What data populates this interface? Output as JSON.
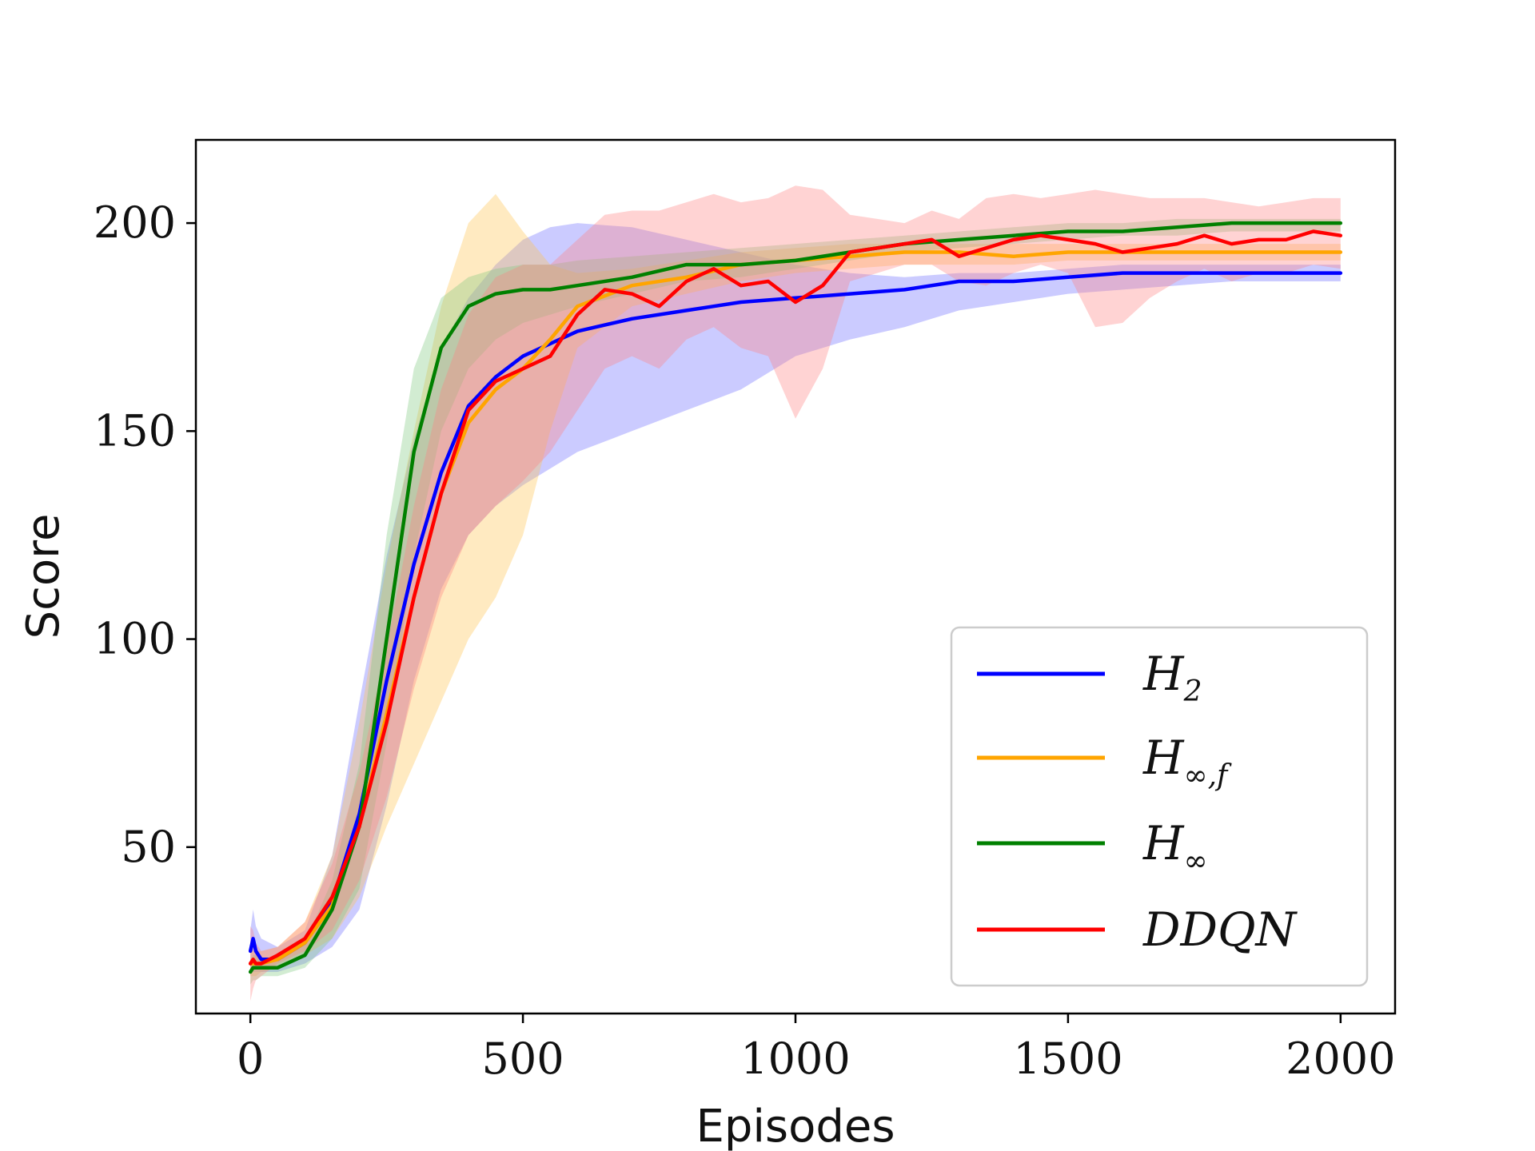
{
  "chart_data": {
    "type": "line",
    "title": "",
    "xlabel": "Episodes",
    "ylabel": "Score",
    "xlim": [
      -100,
      2100
    ],
    "ylim": [
      10,
      220
    ],
    "xticks": [
      0,
      500,
      1000,
      1500,
      2000
    ],
    "yticks": [
      50,
      100,
      150,
      200
    ],
    "xtick_labels": [
      "0",
      "500",
      "1000",
      "1500",
      "2000"
    ],
    "ytick_labels": [
      "50",
      "100",
      "150",
      "200"
    ],
    "grid": false,
    "legend_position": "lower-right",
    "series": [
      {
        "name": "H_2",
        "label_main": "H",
        "label_sub": "2",
        "color": "#0000ff",
        "band_color": "#6a6aff",
        "x": [
          0,
          5,
          10,
          20,
          50,
          100,
          150,
          200,
          250,
          300,
          350,
          400,
          450,
          500,
          550,
          600,
          700,
          800,
          900,
          1000,
          1100,
          1200,
          1300,
          1400,
          1500,
          1600,
          1700,
          1800,
          1900,
          2000
        ],
        "y": [
          25,
          28,
          25,
          23,
          23,
          27,
          37,
          58,
          90,
          118,
          140,
          156,
          163,
          168,
          171,
          174,
          177,
          179,
          181,
          182,
          183,
          184,
          186,
          186,
          187,
          188,
          188,
          188,
          188,
          188
        ],
        "lower": [
          20,
          20,
          20,
          20,
          20,
          22,
          26,
          35,
          60,
          90,
          112,
          125,
          132,
          137,
          141,
          145,
          150,
          155,
          160,
          168,
          172,
          175,
          179,
          181,
          183,
          184,
          185,
          186,
          186,
          186
        ],
        "upper": [
          30,
          35,
          31,
          28,
          26,
          30,
          48,
          85,
          120,
          148,
          170,
          182,
          190,
          196,
          199,
          200,
          199,
          196,
          193,
          190,
          188,
          187,
          188,
          188,
          189,
          190,
          190,
          190,
          190,
          190
        ]
      },
      {
        "name": "H_inf,f",
        "label_main": "H",
        "label_sub": "∞,f",
        "color": "#ffa500",
        "band_color": "#ffc34d",
        "x": [
          0,
          5,
          10,
          20,
          50,
          100,
          150,
          200,
          250,
          300,
          350,
          400,
          450,
          500,
          550,
          600,
          700,
          800,
          900,
          1000,
          1100,
          1200,
          1300,
          1400,
          1500,
          1600,
          1700,
          1800,
          1900,
          2000
        ],
        "y": [
          22,
          22,
          22,
          22,
          23,
          27,
          36,
          55,
          82,
          110,
          135,
          152,
          160,
          165,
          172,
          180,
          185,
          187,
          190,
          191,
          192,
          193,
          193,
          192,
          193,
          193,
          193,
          193,
          193,
          193
        ],
        "lower": [
          19,
          19,
          19,
          20,
          21,
          24,
          28,
          38,
          55,
          70,
          85,
          100,
          110,
          125,
          150,
          170,
          180,
          183,
          186,
          188,
          189,
          190,
          190,
          190,
          191,
          191,
          191,
          191,
          191,
          191
        ],
        "upper": [
          25,
          25,
          25,
          25,
          26,
          32,
          48,
          80,
          118,
          150,
          180,
          200,
          207,
          198,
          190,
          188,
          189,
          191,
          193,
          194,
          195,
          195,
          195,
          195,
          195,
          195,
          195,
          195,
          195,
          195
        ]
      },
      {
        "name": "H_inf",
        "label_main": "H",
        "label_sub": "∞",
        "color": "#008000",
        "band_color": "#7fc97f",
        "x": [
          0,
          5,
          10,
          20,
          50,
          100,
          150,
          200,
          250,
          300,
          350,
          400,
          450,
          500,
          550,
          600,
          700,
          800,
          900,
          1000,
          1100,
          1200,
          1300,
          1400,
          1500,
          1600,
          1700,
          1800,
          1900,
          2000
        ],
        "y": [
          20,
          21,
          21,
          21,
          21,
          24,
          35,
          55,
          100,
          145,
          170,
          180,
          183,
          184,
          184,
          185,
          187,
          190,
          190,
          191,
          193,
          195,
          196,
          197,
          198,
          198,
          199,
          200,
          200,
          200
        ],
        "lower": [
          17,
          18,
          18,
          19,
          19,
          21,
          28,
          40,
          75,
          120,
          150,
          165,
          172,
          176,
          178,
          180,
          183,
          186,
          187,
          189,
          191,
          193,
          194,
          195,
          196,
          197,
          197,
          198,
          198,
          198
        ],
        "upper": [
          23,
          24,
          24,
          23,
          23,
          27,
          42,
          70,
          125,
          165,
          182,
          187,
          189,
          190,
          190,
          191,
          192,
          193,
          194,
          195,
          196,
          197,
          198,
          199,
          200,
          200,
          201,
          201,
          201,
          201
        ]
      },
      {
        "name": "DDQN",
        "label_main": "DDQN",
        "label_sub": "",
        "color": "#ff0000",
        "band_color": "#ff8080",
        "x": [
          0,
          5,
          10,
          20,
          50,
          100,
          150,
          200,
          250,
          300,
          350,
          400,
          450,
          500,
          550,
          600,
          650,
          700,
          750,
          800,
          850,
          900,
          950,
          1000,
          1050,
          1100,
          1150,
          1200,
          1250,
          1300,
          1350,
          1400,
          1450,
          1500,
          1550,
          1600,
          1650,
          1700,
          1750,
          1800,
          1850,
          1900,
          1950,
          2000
        ],
        "y": [
          22,
          23,
          22,
          22,
          24,
          28,
          38,
          55,
          80,
          110,
          135,
          155,
          162,
          165,
          168,
          178,
          184,
          183,
          180,
          186,
          189,
          185,
          186,
          181,
          185,
          193,
          194,
          195,
          196,
          192,
          194,
          196,
          197,
          196,
          195,
          193,
          194,
          195,
          197,
          195,
          196,
          196,
          198,
          197
        ],
        "lower": [
          13,
          16,
          18,
          19,
          22,
          25,
          30,
          42,
          62,
          88,
          110,
          125,
          132,
          138,
          145,
          155,
          165,
          168,
          165,
          172,
          175,
          170,
          168,
          153,
          165,
          186,
          188,
          190,
          190,
          186,
          185,
          188,
          190,
          188,
          175,
          176,
          182,
          186,
          189,
          186,
          188,
          188,
          190,
          189
        ],
        "upper": [
          31,
          30,
          27,
          25,
          26,
          32,
          46,
          68,
          98,
          132,
          160,
          178,
          187,
          190,
          190,
          196,
          202,
          203,
          203,
          205,
          207,
          205,
          206,
          209,
          208,
          202,
          201,
          200,
          203,
          201,
          206,
          207,
          206,
          207,
          208,
          207,
          206,
          206,
          206,
          205,
          204,
          205,
          206,
          206
        ]
      }
    ]
  }
}
